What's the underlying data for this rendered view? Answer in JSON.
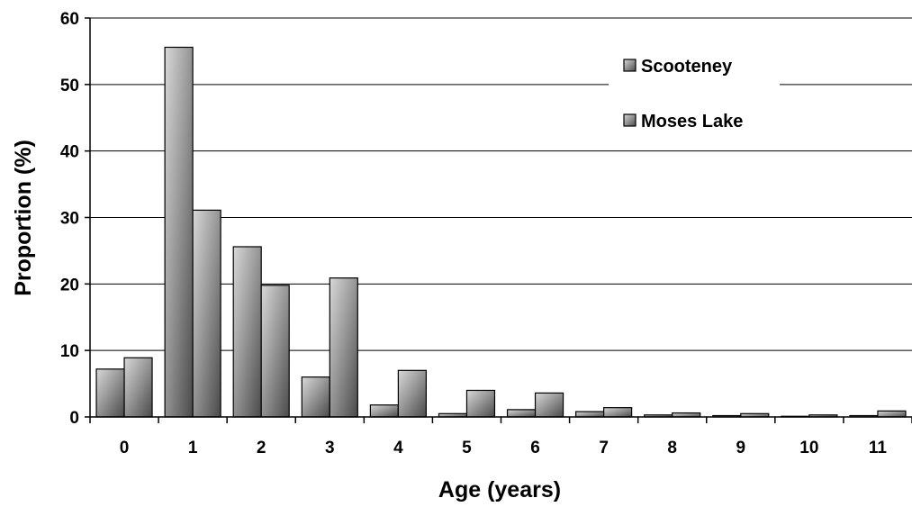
{
  "chart_data": {
    "type": "bar",
    "title": "",
    "xlabel": "Age (years)",
    "ylabel": "Proportion (%)",
    "ylim": [
      0,
      60
    ],
    "yticks": [
      0,
      10,
      20,
      30,
      40,
      50,
      60
    ],
    "categories": [
      "0",
      "1",
      "2",
      "3",
      "4",
      "5",
      "6",
      "7",
      "8",
      "9",
      "10",
      "11"
    ],
    "series": [
      {
        "name": "Scooteney",
        "values": [
          7.2,
          55.6,
          25.6,
          6.0,
          1.8,
          0.5,
          1.1,
          0.8,
          0.3,
          0.2,
          0.1,
          0.2
        ]
      },
      {
        "name": "Moses Lake",
        "values": [
          8.9,
          31.1,
          19.8,
          20.9,
          7.0,
          4.0,
          3.6,
          1.4,
          0.6,
          0.5,
          0.3,
          0.9
        ]
      }
    ],
    "grid": "horizontal",
    "legend_position": "top-right",
    "bar_colors": [
      "#555555",
      "#999999"
    ]
  }
}
